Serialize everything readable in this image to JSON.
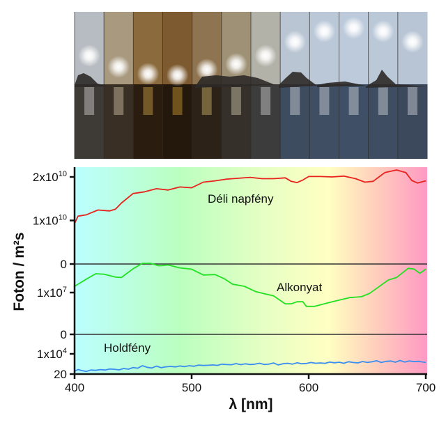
{
  "photo_strip": {
    "description": "Sky over sea with islands from daylight through sunset and back",
    "panels": [
      {
        "sky": "#b7bcc2",
        "sun": "#ffffff",
        "water": "#3e3a36"
      },
      {
        "sky": "#a8997f",
        "sun": "#fff1c8",
        "water": "#3a2f25"
      },
      {
        "sky": "#8b6b3e",
        "sun": "#ffcc55",
        "water": "#2a1d10"
      },
      {
        "sky": "#7d5a30",
        "sun": "#ffc040",
        "water": "#24180c"
      },
      {
        "sky": "#8e7450",
        "sun": "#ffdd80",
        "water": "#2c2218"
      },
      {
        "sky": "#9e9175",
        "sun": "#fff5d8",
        "water": "#35302a"
      },
      {
        "sky": "#b3b2a8",
        "sun": "#ffffff",
        "water": "#3c3c3c"
      },
      {
        "sky": "#b9c5d3",
        "sun": "#ffffff",
        "water": "#3e4c60"
      },
      {
        "sky": "#bac8d8",
        "sun": "#ffffff",
        "water": "#3f4e63"
      },
      {
        "sky": "#bccadb",
        "sun": "#ffffff",
        "water": "#3f4f66"
      },
      {
        "sky": "#bac8d8",
        "sun": "#ffffff",
        "water": "#3e4d62"
      },
      {
        "sky": "#b8c5d4",
        "sun": "#ffffff",
        "water": "#3c495c"
      }
    ]
  },
  "chart_data": {
    "type": "line",
    "xlabel": "λ [nm]",
    "ylabel": "Foton / m²s",
    "xlim": [
      400,
      700
    ],
    "xticks": [
      400,
      500,
      600,
      700
    ],
    "background": "visible spectrum gradient (cyan → green → yellow → pink)",
    "grid": false,
    "panels": [
      {
        "name": "Déli napfény",
        "color": "#e8221c",
        "scale": "linear",
        "ylim": [
          0,
          22000000000.0
        ],
        "yticks": [
          {
            "value": 0,
            "label": "0"
          },
          {
            "value": 10000000000.0,
            "label": "1x10",
            "exp": "10"
          },
          {
            "value": 20000000000.0,
            "label": "2x10",
            "exp": "10"
          }
        ],
        "x": [
          400,
          403,
          410,
          420,
          430,
          435,
          440,
          450,
          460,
          470,
          480,
          490,
          500,
          510,
          520,
          530,
          540,
          550,
          560,
          570,
          580,
          585,
          590,
          595,
          600,
          610,
          620,
          630,
          640,
          648,
          655,
          665,
          675,
          683,
          688,
          693,
          700
        ],
        "y": [
          9300000000.0,
          11000000000.0,
          11300000000.0,
          12400000000.0,
          12200000000.0,
          12600000000.0,
          14000000000.0,
          16200000000.0,
          16600000000.0,
          17300000000.0,
          17000000000.0,
          17700000000.0,
          17500000000.0,
          18800000000.0,
          19100000000.0,
          19500000000.0,
          19700000000.0,
          19900000000.0,
          19600000000.0,
          19600000000.0,
          19800000000.0,
          19000000000.0,
          18700000000.0,
          19300000000.0,
          20100000000.0,
          20100000000.0,
          20000000000.0,
          20200000000.0,
          19600000000.0,
          18800000000.0,
          19000000000.0,
          21000000000.0,
          21600000000.0,
          21000000000.0,
          19200000000.0,
          18600000000.0,
          19100000000.0
        ]
      },
      {
        "name": "Alkonyat",
        "color": "#22e022",
        "scale": "linear",
        "ylim": [
          0,
          16800000.0
        ],
        "yticks": [
          {
            "value": 0,
            "label": "0"
          },
          {
            "value": 10000000.0,
            "label": "1x10",
            "exp": "7"
          }
        ],
        "x": [
          400,
          410,
          418,
          425,
          435,
          440,
          450,
          458,
          465,
          472,
          480,
          490,
          500,
          510,
          520,
          528,
          535,
          545,
          555,
          570,
          580,
          585,
          590,
          595,
          598,
          605,
          620,
          635,
          645,
          652,
          668,
          675,
          685,
          690,
          695,
          700
        ],
        "y": [
          11500000.0,
          13200000.0,
          14500000.0,
          14400000.0,
          13700000.0,
          13600000.0,
          15700000.0,
          17000000.0,
          17000000.0,
          16400000.0,
          16600000.0,
          15900000.0,
          15600000.0,
          14200000.0,
          14300000.0,
          13300000.0,
          12000000.0,
          11500000.0,
          10200000.0,
          9200000.0,
          7300000.0,
          7300000.0,
          7800000.0,
          7800000.0,
          6700000.0,
          6700000.0,
          7800000.0,
          8800000.0,
          9000000.0,
          9800000.0,
          13000000.0,
          13600000.0,
          15800000.0,
          15600000.0,
          14600000.0,
          15600000.0
        ]
      },
      {
        "name": "Holdfény",
        "color": "#3a8ef0",
        "scale": "log",
        "ylim": [
          20,
          110000.0
        ],
        "yticks": [
          {
            "value": 20,
            "label": "20"
          },
          {
            "value": 10000.0,
            "label": "1x10",
            "exp": "4"
          }
        ],
        "x": [
          400,
          403,
          406,
          410,
          414,
          418,
          422,
          426,
          430,
          434,
          438,
          442,
          446,
          450,
          454,
          458,
          462,
          466,
          470,
          474,
          478,
          482,
          486,
          490,
          494,
          498,
          502,
          506,
          510,
          514,
          518,
          522,
          526,
          530,
          534,
          538,
          542,
          546,
          550,
          554,
          558,
          562,
          566,
          570,
          574,
          578,
          582,
          586,
          590,
          594,
          598,
          602,
          606,
          610,
          614,
          618,
          622,
          626,
          630,
          634,
          638,
          642,
          646,
          650,
          654,
          658,
          662,
          666,
          670,
          674,
          678,
          682,
          686,
          690,
          694,
          698,
          700
        ],
        "y": [
          48,
          80,
          60,
          45,
          70,
          62,
          78,
          70,
          95,
          88,
          72,
          110,
          90,
          150,
          120,
          260,
          160,
          130,
          230,
          140,
          185,
          210,
          180,
          240,
          200,
          260,
          220,
          320,
          280,
          300,
          330,
          290,
          420,
          380,
          350,
          500,
          360,
          470,
          380,
          420,
          560,
          380,
          430,
          600,
          330,
          480,
          560,
          420,
          640,
          480,
          520,
          700,
          560,
          620,
          540,
          800,
          640,
          760,
          560,
          880,
          700,
          620,
          940,
          720,
          860,
          1200,
          700,
          980,
          1100,
          760,
          1300,
          800,
          1150,
          900,
          1000,
          780,
          700
        ]
      }
    ]
  }
}
